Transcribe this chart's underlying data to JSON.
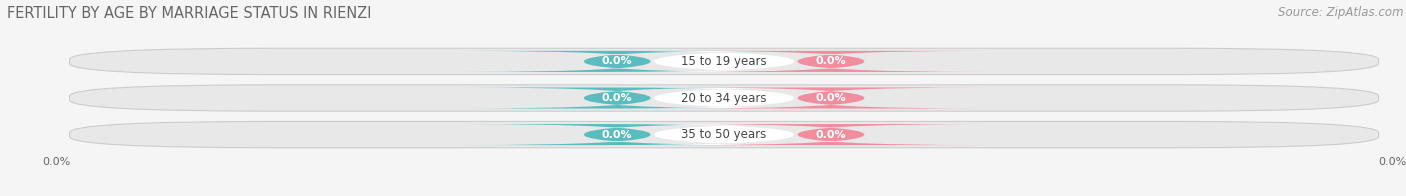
{
  "title": "FERTILITY BY AGE BY MARRIAGE STATUS IN RIENZI",
  "source": "Source: ZipAtlas.com",
  "age_groups": [
    "15 to 19 years",
    "20 to 34 years",
    "35 to 50 years"
  ],
  "married_color": "#5bbcbf",
  "unmarried_color": "#f08ea0",
  "bar_bg_color": "#e8e8e8",
  "bar_border_color": "#d0d0d0",
  "center_pill_color": "#ffffff",
  "background_color": "#f5f5f5",
  "title_fontsize": 10.5,
  "source_fontsize": 8.5,
  "label_fontsize": 8,
  "tick_fontsize": 8,
  "value_label": "0.0%",
  "left_axis_label": "0.0%",
  "right_axis_label": "0.0%"
}
